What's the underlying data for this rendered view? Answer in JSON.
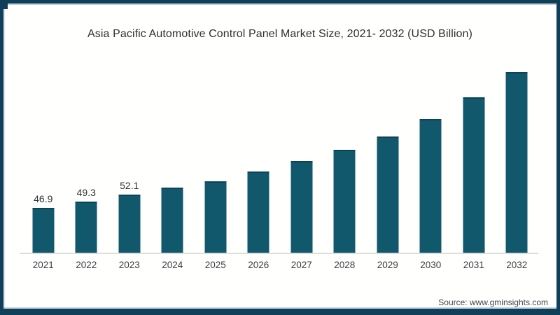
{
  "frame": {
    "border_color": "#113e58",
    "inner_line_color": "#96b6cd"
  },
  "source": "Source: www.gminsights.com",
  "chart_data": {
    "type": "bar",
    "title": "Asia Pacific Automotive Control Panel Market Size, 2021- 2032 (USD Billion)",
    "unit": "USD Billion",
    "categories": [
      "2021",
      "2022",
      "2023",
      "2024",
      "2025",
      "2026",
      "2027",
      "2028",
      "2029",
      "2030",
      "2031",
      "2032"
    ],
    "values": [
      46.9,
      49.3,
      52.1,
      54.7,
      57.4,
      61.0,
      65.1,
      69.6,
      74.8,
      81.7,
      90.0,
      100.1
    ],
    "value_labels": [
      "46.9",
      "49.3",
      "52.1",
      "",
      "",
      "",
      "",
      "",
      "",
      "",
      "",
      ""
    ],
    "xlabel": "",
    "ylabel": "",
    "ylim": [
      29.1,
      103
    ],
    "grid": false,
    "legend": false,
    "y_axis_shown": false,
    "bar_color": "#11586c",
    "axis_line_color": "#dcdddd",
    "label_color": "#2f3235",
    "tick_label_color": "#393d40"
  }
}
